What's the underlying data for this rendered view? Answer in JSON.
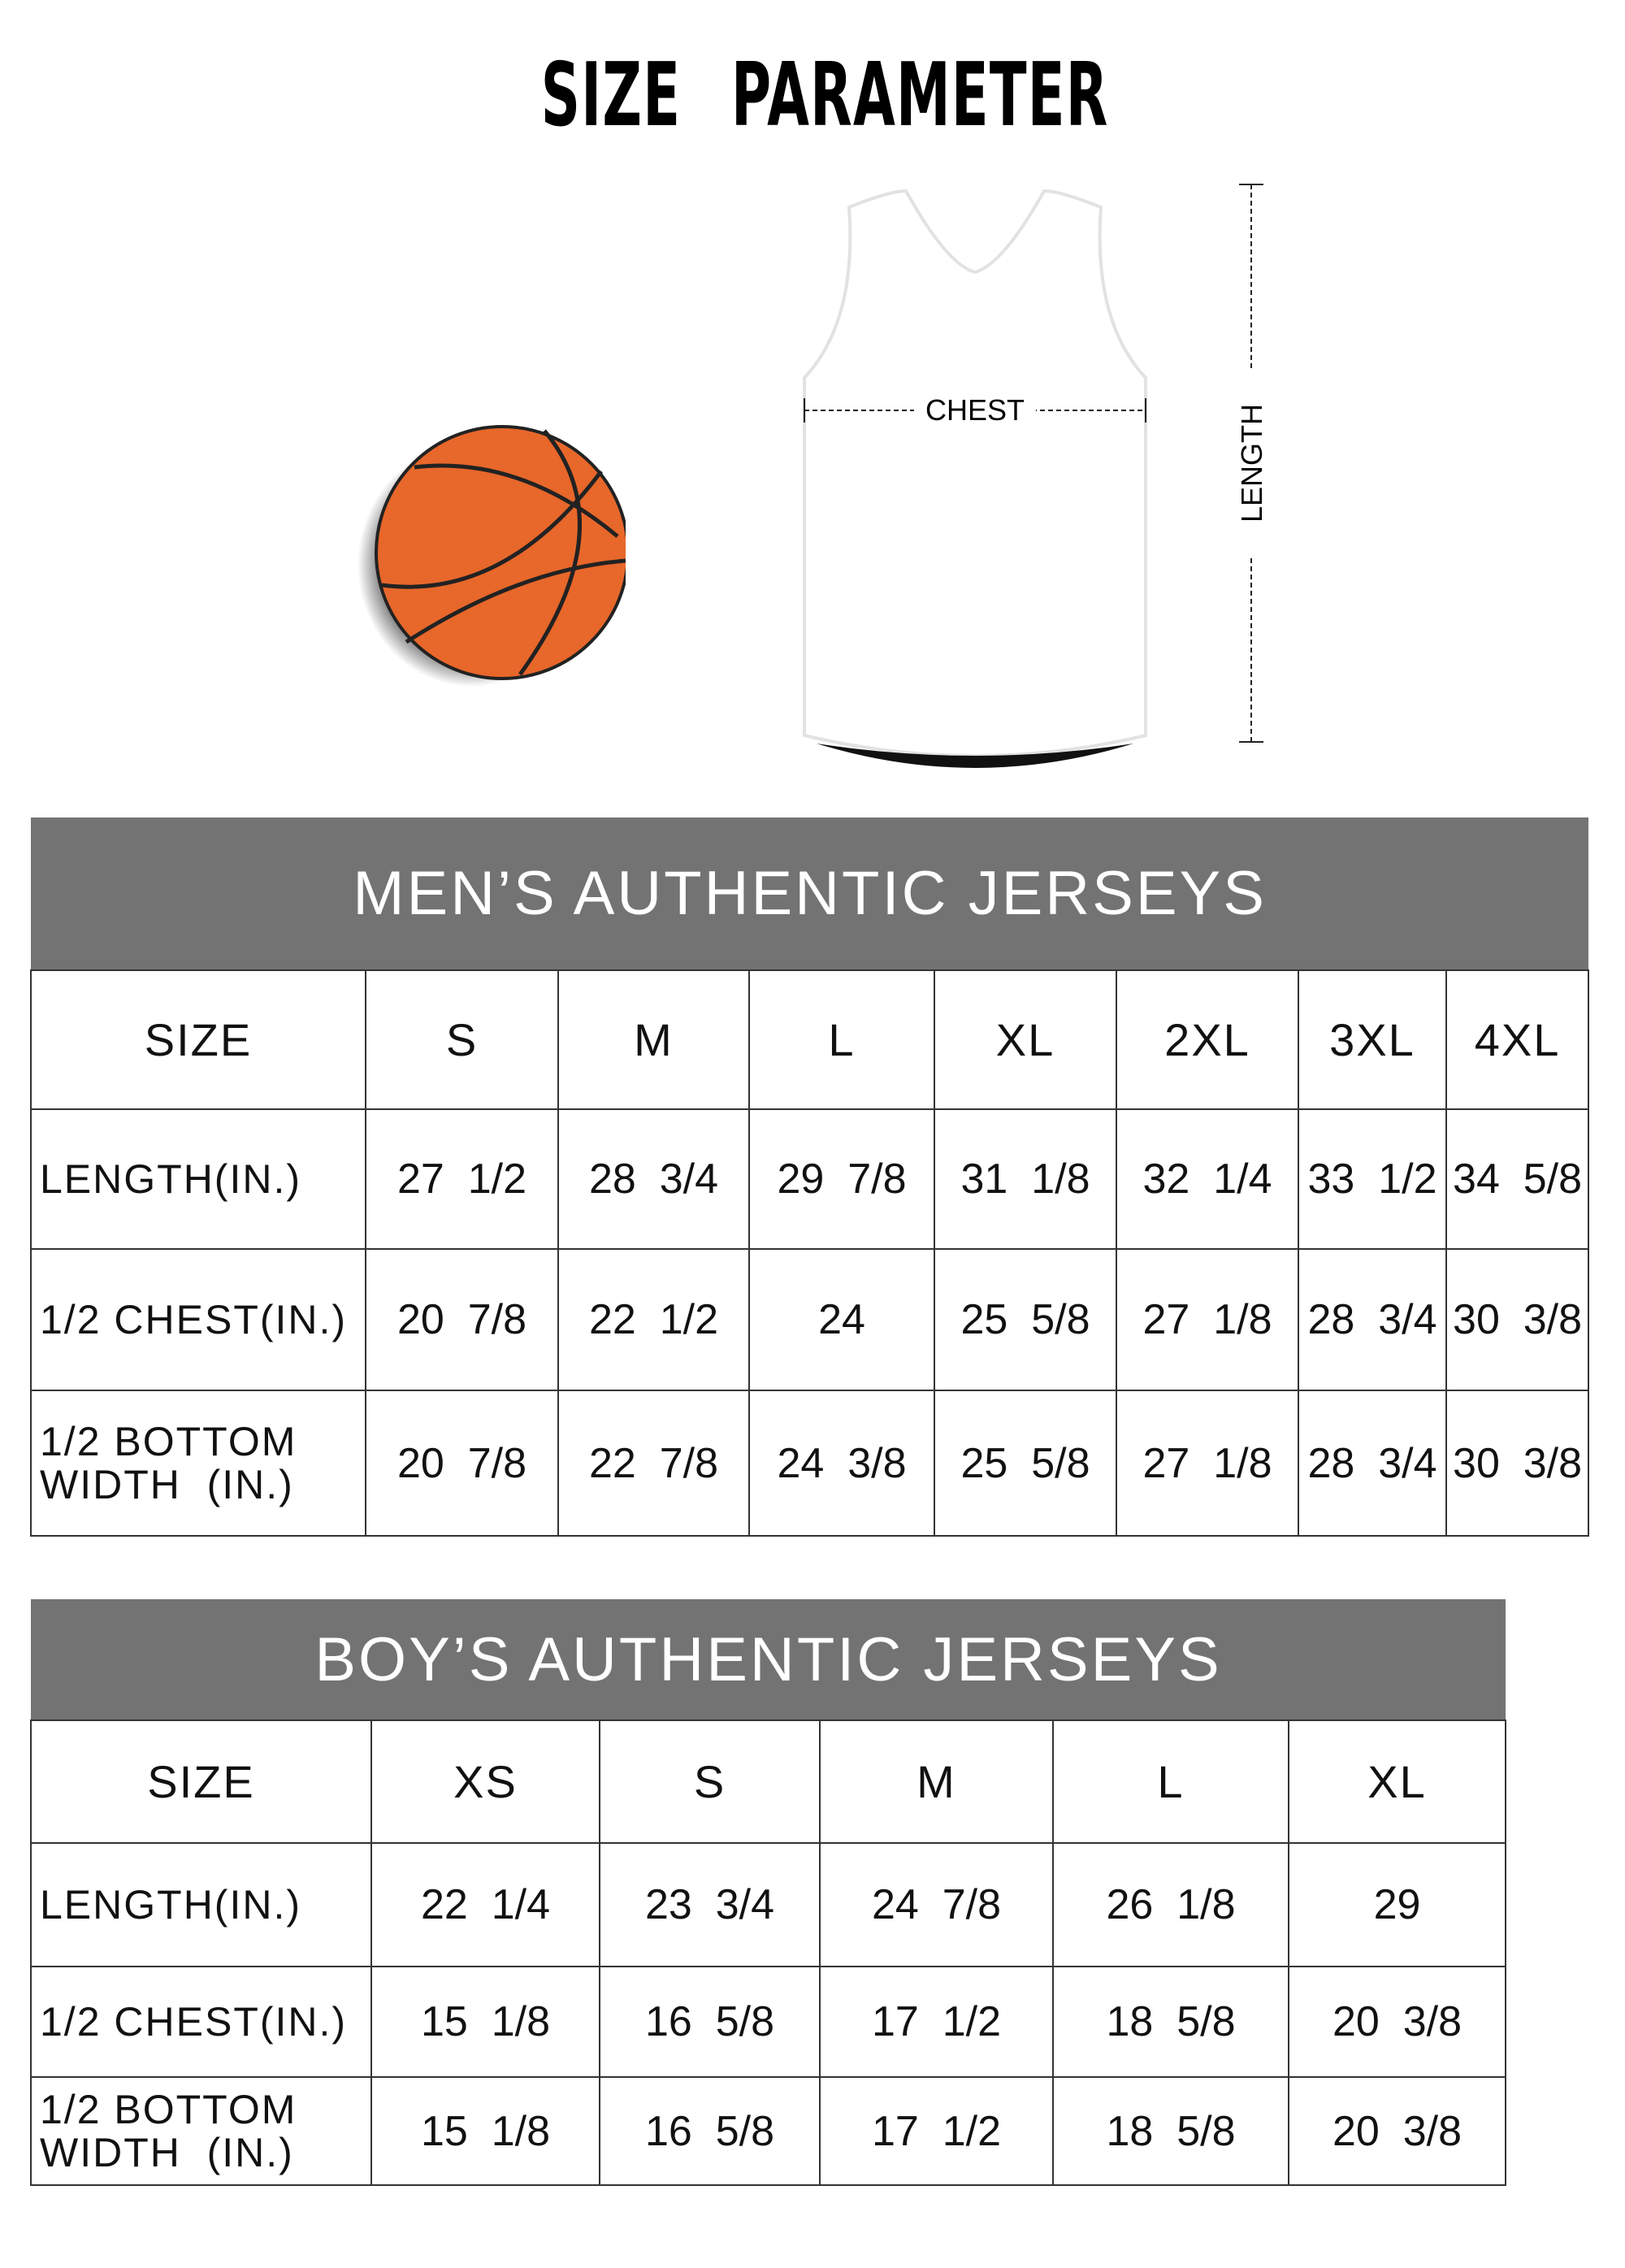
{
  "title": "SIZE PARAMETER",
  "diagram": {
    "chest_label": "CHEST",
    "length_label": "LENGTH",
    "ball_color": "#e8672a",
    "header_color": "#737373"
  },
  "men": {
    "title": "MEN’S AUTHENTIC JERSEYS",
    "header": [
      "SIZE",
      "S",
      "M",
      "L",
      "XL",
      "2XL",
      "3XL",
      "4XL"
    ],
    "rows": [
      {
        "label": "LENGTH(IN.)",
        "values": [
          "27  1/2",
          "28  3/4",
          "29  7/8",
          "31  1/8",
          "32  1/4",
          "33  1/2",
          "34  5/8"
        ]
      },
      {
        "label": "1/2 CHEST(IN.)",
        "values": [
          "20  7/8",
          "22  1/2",
          "24",
          "25  5/8",
          "27  1/8",
          "28  3/4",
          "30  3/8"
        ]
      },
      {
        "label": "1/2 BOTTOM\nWIDTH  (IN.)",
        "values": [
          "20  7/8",
          "22  7/8",
          "24  3/8",
          "25  5/8",
          "27  1/8",
          "28  3/4",
          "30  3/8"
        ]
      }
    ]
  },
  "boy": {
    "title": "BOY’S AUTHENTIC JERSEYS",
    "header": [
      "SIZE",
      "XS",
      "S",
      "M",
      "L",
      "XL"
    ],
    "rows": [
      {
        "label": "LENGTH(IN.)",
        "values": [
          "22  1/4",
          "23  3/4",
          "24  7/8",
          "26  1/8",
          "29"
        ]
      },
      {
        "label": "1/2 CHEST(IN.)",
        "values": [
          "15  1/8",
          "16  5/8",
          "17  1/2",
          "18  5/8",
          "20  3/8"
        ]
      },
      {
        "label": "1/2 BOTTOM\nWIDTH  (IN.)",
        "values": [
          "15  1/8",
          "16  5/8",
          "17  1/2",
          "18  5/8",
          "20  3/8"
        ]
      }
    ]
  }
}
